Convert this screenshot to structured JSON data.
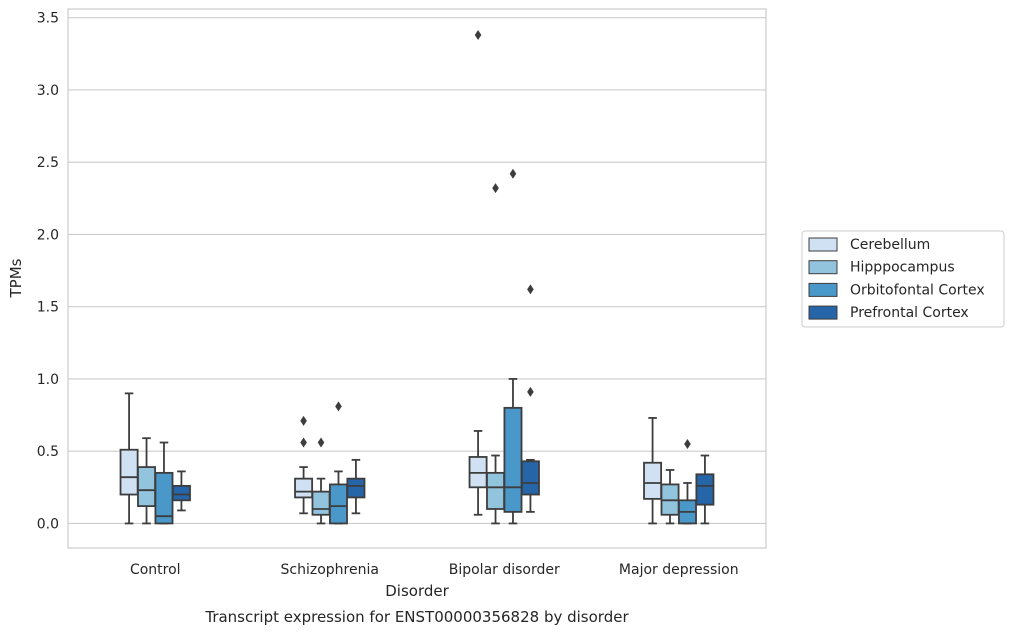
{
  "chart_data": {
    "type": "boxplot",
    "caption": "Transcript expression for ENST00000356828 by disorder",
    "xlabel": "Disorder",
    "ylabel": "TPMs",
    "ylim": [
      -0.17,
      3.56
    ],
    "yticks": [
      "0.0",
      "0.5",
      "1.0",
      "1.5",
      "2.0",
      "2.5",
      "3.0",
      "3.5"
    ],
    "grid": "horizontal",
    "legend_position": "right-outside",
    "categories": [
      "Control",
      "Schizophrenia",
      "Bipolar disorder",
      "Major depression"
    ],
    "series": [
      {
        "name": "Cerebellum",
        "color": "#cfe1f2",
        "boxes": [
          {
            "whislo": 0.0,
            "q1": 0.2,
            "median": 0.32,
            "q3": 0.51,
            "whishi": 0.9,
            "fliers": []
          },
          {
            "whislo": 0.07,
            "q1": 0.18,
            "median": 0.22,
            "q3": 0.31,
            "whishi": 0.39,
            "fliers": [
              0.56,
              0.71
            ]
          },
          {
            "whislo": 0.06,
            "q1": 0.25,
            "median": 0.35,
            "q3": 0.46,
            "whishi": 0.64,
            "fliers": [
              3.38
            ]
          },
          {
            "whislo": 0.0,
            "q1": 0.17,
            "median": 0.28,
            "q3": 0.42,
            "whishi": 0.73,
            "fliers": []
          }
        ]
      },
      {
        "name": "Hipppocampus",
        "color": "#93c4de",
        "boxes": [
          {
            "whislo": 0.0,
            "q1": 0.12,
            "median": 0.23,
            "q3": 0.39,
            "whishi": 0.59,
            "fliers": []
          },
          {
            "whislo": 0.0,
            "q1": 0.06,
            "median": 0.1,
            "q3": 0.22,
            "whishi": 0.31,
            "fliers": [
              0.56
            ]
          },
          {
            "whislo": 0.0,
            "q1": 0.1,
            "median": 0.25,
            "q3": 0.35,
            "whishi": 0.47,
            "fliers": [
              2.32
            ]
          },
          {
            "whislo": 0.0,
            "q1": 0.06,
            "median": 0.16,
            "q3": 0.27,
            "whishi": 0.37,
            "fliers": []
          }
        ]
      },
      {
        "name": "Orbitofontal Cortex",
        "color": "#4a98c9",
        "boxes": [
          {
            "whislo": 0.0,
            "q1": 0.0,
            "median": 0.05,
            "q3": 0.35,
            "whishi": 0.56,
            "fliers": []
          },
          {
            "whislo": 0.0,
            "q1": 0.0,
            "median": 0.12,
            "q3": 0.27,
            "whishi": 0.36,
            "fliers": [
              0.81
            ]
          },
          {
            "whislo": 0.0,
            "q1": 0.08,
            "median": 0.25,
            "q3": 0.8,
            "whishi": 1.0,
            "fliers": [
              2.42
            ]
          },
          {
            "whislo": 0.0,
            "q1": 0.0,
            "median": 0.08,
            "q3": 0.16,
            "whishi": 0.28,
            "fliers": [
              0.55
            ]
          }
        ]
      },
      {
        "name": "Prefrontal Cortex",
        "color": "#2565a8",
        "boxes": [
          {
            "whislo": 0.09,
            "q1": 0.16,
            "median": 0.2,
            "q3": 0.26,
            "whishi": 0.36,
            "fliers": []
          },
          {
            "whislo": 0.07,
            "q1": 0.18,
            "median": 0.26,
            "q3": 0.31,
            "whishi": 0.44,
            "fliers": []
          },
          {
            "whislo": 0.08,
            "q1": 0.2,
            "median": 0.28,
            "q3": 0.43,
            "whishi": 0.44,
            "fliers": [
              0.91,
              1.62
            ]
          },
          {
            "whislo": 0.0,
            "q1": 0.13,
            "median": 0.26,
            "q3": 0.34,
            "whishi": 0.47,
            "fliers": []
          }
        ]
      }
    ]
  }
}
